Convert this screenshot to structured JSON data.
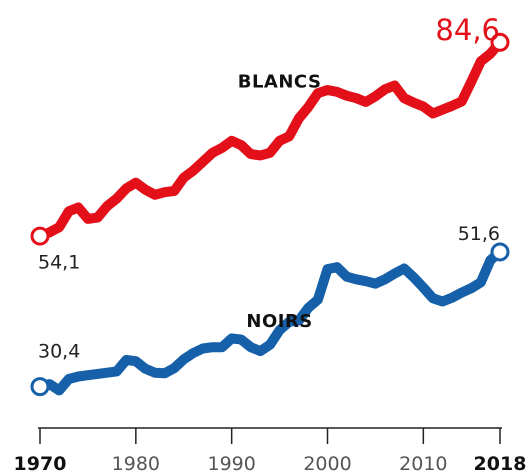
{
  "chart_data": {
    "type": "line",
    "title": "",
    "xlabel": "",
    "ylabel": "",
    "xlim": [
      1970,
      2018
    ],
    "ylim": [
      22,
      90
    ],
    "grid": false,
    "x_ticks": [
      "1970",
      "1980",
      "1990",
      "2000",
      "2010",
      "2018"
    ],
    "series": [
      {
        "name": "BLANCS",
        "color": "#e3101a",
        "start_label": "54,1",
        "end_label": "84,6",
        "x": [
          1970,
          1971,
          1972,
          1973,
          1974,
          1975,
          1976,
          1977,
          1978,
          1979,
          1980,
          1981,
          1982,
          1983,
          1984,
          1985,
          1986,
          1987,
          1988,
          1989,
          1990,
          1991,
          1992,
          1993,
          1994,
          1995,
          1996,
          1997,
          1998,
          1999,
          2000,
          2001,
          2002,
          2003,
          2004,
          2005,
          2006,
          2007,
          2008,
          2009,
          2010,
          2011,
          2012,
          2013,
          2014,
          2015,
          2016,
          2017,
          2018
        ],
        "values": [
          54.1,
          54.7,
          55.5,
          58.0,
          58.6,
          56.8,
          57.0,
          58.8,
          60.0,
          61.6,
          62.5,
          61.4,
          60.6,
          61.0,
          61.2,
          63.3,
          64.4,
          65.8,
          67.2,
          68.0,
          69.1,
          68.4,
          67.0,
          66.8,
          67.2,
          69.1,
          69.8,
          72.6,
          74.4,
          76.6,
          77.1,
          76.8,
          76.2,
          75.8,
          75.2,
          76.1,
          77.2,
          77.8,
          75.8,
          75.1,
          74.5,
          73.4,
          74.0,
          74.6,
          75.3,
          78.4,
          81.6,
          82.8,
          84.6
        ]
      },
      {
        "name": "NOIRS",
        "color": "#1560a8",
        "start_label": "30,4",
        "end_label": "51,6",
        "x": [
          1970,
          1971,
          1972,
          1973,
          1974,
          1975,
          1976,
          1977,
          1978,
          1979,
          1980,
          1981,
          1982,
          1983,
          1984,
          1985,
          1986,
          1987,
          1988,
          1989,
          1990,
          1991,
          1992,
          1993,
          1994,
          1995,
          1996,
          1997,
          1998,
          1999,
          2000,
          2001,
          2002,
          2003,
          2004,
          2005,
          2006,
          2007,
          2008,
          2009,
          2010,
          2011,
          2012,
          2013,
          2014,
          2015,
          2016,
          2017,
          2018
        ],
        "values": [
          30.4,
          30.8,
          29.8,
          31.6,
          32.0,
          32.2,
          32.4,
          32.6,
          32.8,
          34.6,
          34.4,
          33.2,
          32.6,
          32.5,
          33.3,
          34.7,
          35.7,
          36.4,
          36.6,
          36.6,
          38.0,
          37.8,
          36.6,
          36.0,
          37.0,
          39.3,
          40.6,
          40.8,
          42.8,
          44.1,
          48.9,
          49.2,
          47.7,
          47.3,
          47.0,
          46.6,
          47.3,
          48.2,
          49.0,
          47.6,
          46.0,
          44.3,
          43.8,
          44.4,
          45.2,
          45.9,
          46.8,
          50.3,
          51.6
        ]
      }
    ]
  }
}
